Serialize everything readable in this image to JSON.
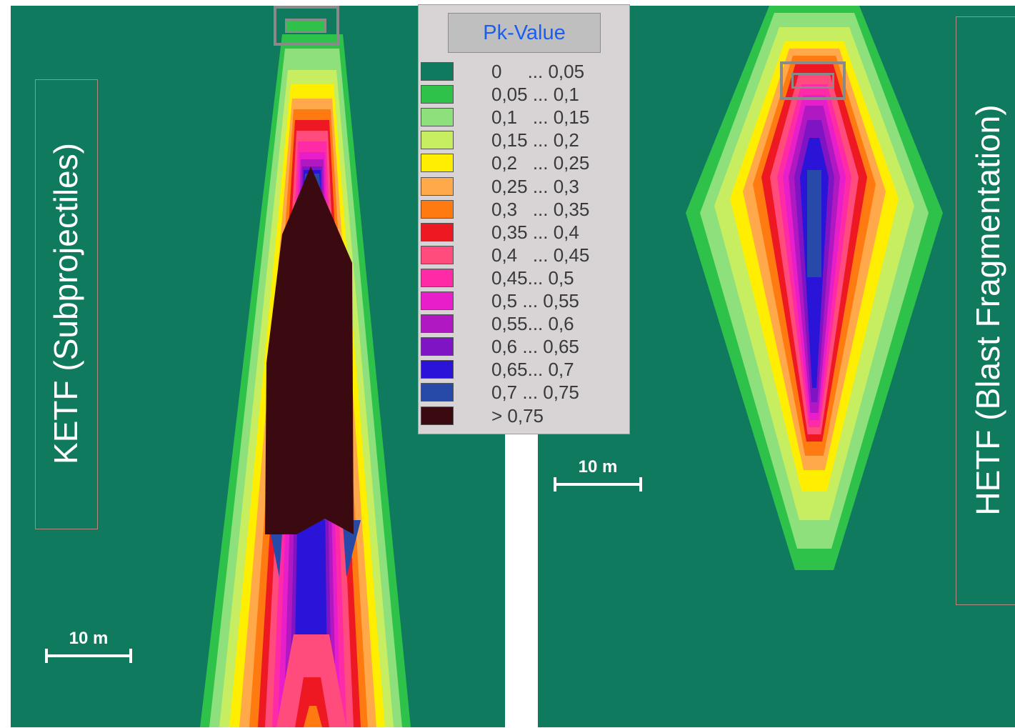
{
  "left_panel": {
    "label": "KETF (Subprojectiles)",
    "scale_label": "10 m"
  },
  "right_panel": {
    "label": "HETF (Blast Fragmentation)",
    "scale_label": "10 m"
  },
  "legend": {
    "title": "Pk-Value",
    "entries": [
      {
        "range": "0     ... 0,05",
        "color": "#0f7a5e"
      },
      {
        "range": "0,05 ... 0,1",
        "color": "#2ec24a"
      },
      {
        "range": "0,1   ... 0,15",
        "color": "#8de07c"
      },
      {
        "range": "0,15 ... 0,2",
        "color": "#c6ee60"
      },
      {
        "range": "0,2   ... 0,25",
        "color": "#ffee00"
      },
      {
        "range": "0,25 ... 0,3",
        "color": "#ffa94a"
      },
      {
        "range": "0,3   ... 0,35",
        "color": "#ff7a10"
      },
      {
        "range": "0,35 ... 0,4",
        "color": "#ee1822"
      },
      {
        "range": "0,4   ... 0,45",
        "color": "#ff4c7c"
      },
      {
        "range": "0,45... 0,5",
        "color": "#ff2aa6"
      },
      {
        "range": "0,5 ... 0,55",
        "color": "#e81ecb"
      },
      {
        "range": "0,55... 0,6",
        "color": "#b018c2"
      },
      {
        "range": "0,6 ... 0,65",
        "color": "#7e14c4"
      },
      {
        "range": "0,65... 0,7",
        "color": "#2a14d8"
      },
      {
        "range": "0,7 ... 0,75",
        "color": "#274aa8"
      },
      {
        "range": "> 0,75",
        "color": "#3b0a10"
      }
    ]
  }
}
